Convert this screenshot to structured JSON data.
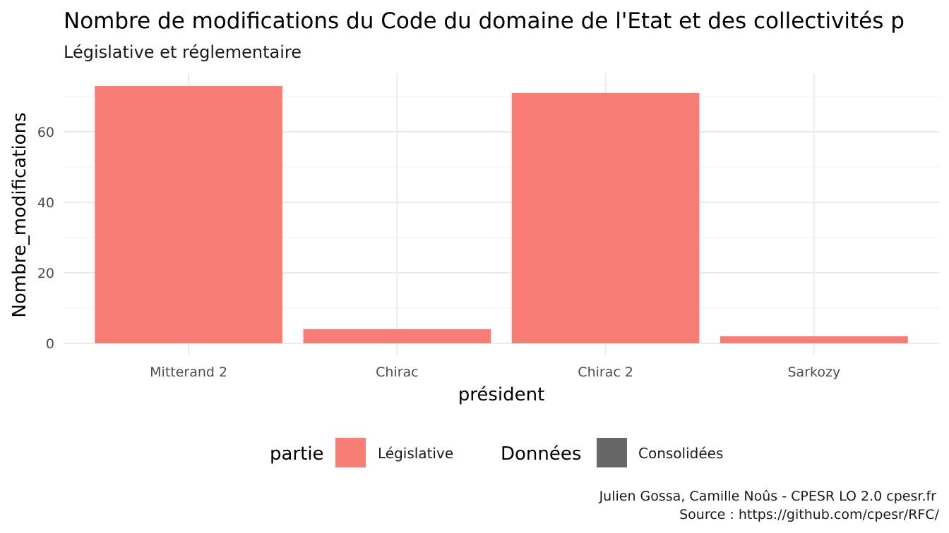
{
  "chart_data": {
    "type": "bar",
    "title": "Nombre de modifications du Code du domaine de l'Etat et des collectivités p",
    "subtitle": "Législative et réglementaire",
    "xlabel": "président",
    "ylabel": "Nombre_modifications",
    "categories": [
      "Mitterand 2",
      "Chirac",
      "Chirac 2",
      "Sarkozy"
    ],
    "series": [
      {
        "name": "Législative",
        "color": "#F8766D",
        "values": [
          73,
          4,
          71,
          2
        ]
      }
    ],
    "ylim": [
      0,
      76.5
    ],
    "yticks": [
      0,
      20,
      40,
      60
    ],
    "grid": true,
    "legend": {
      "position": "bottom",
      "groups": [
        {
          "title": "partie",
          "entries": [
            {
              "label": "Législative",
              "color": "#F8766D"
            }
          ]
        },
        {
          "title": "Données",
          "entries": [
            {
              "label": "Consolidées",
              "color": "#666666"
            }
          ]
        }
      ]
    },
    "caption": [
      "Julien Gossa, Camille Noûs - CPESR LO 2.0 cpesr.fr",
      "Source : https://github.com/cpesr/RFC/"
    ]
  }
}
